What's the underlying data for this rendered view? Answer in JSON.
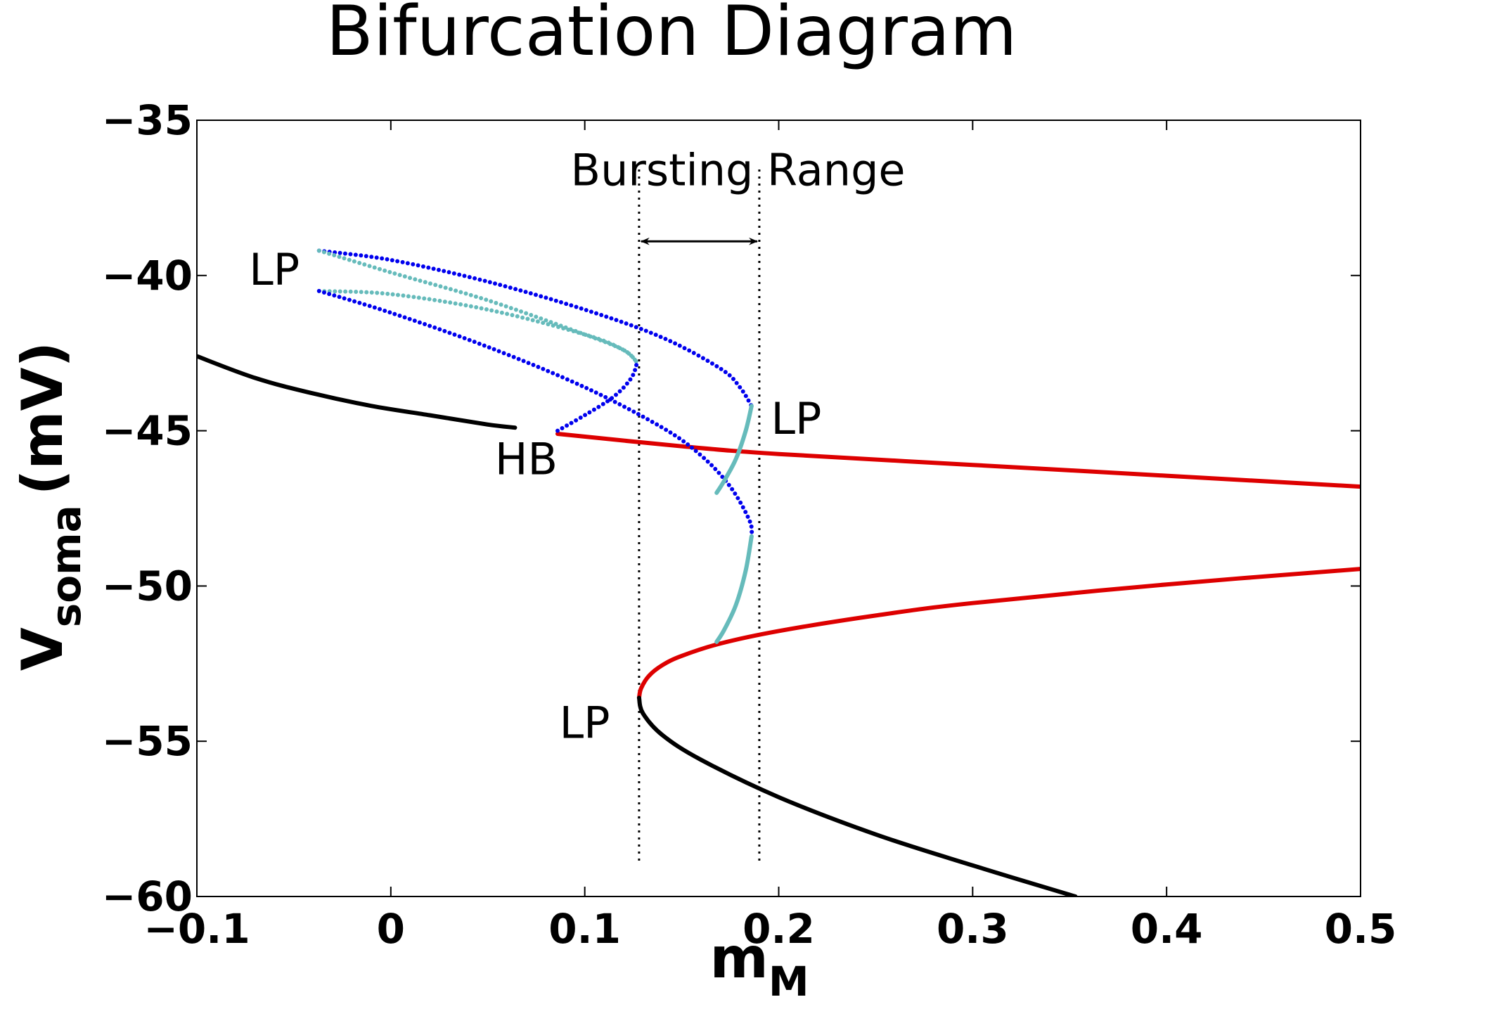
{
  "chart_data": {
    "type": "line",
    "title": "Bifurcation Diagram",
    "xlabel": {
      "main": "m",
      "sub": "M"
    },
    "ylabel": {
      "main": "V",
      "sub": "soma",
      "unit": "(mV)"
    },
    "xlim": [
      -0.1,
      0.5
    ],
    "ylim": [
      -60,
      -35
    ],
    "grid": false,
    "xticks": [
      -0.1,
      0,
      0.1,
      0.2,
      0.3,
      0.4,
      0.5
    ],
    "xtick_labels": [
      "−0.1",
      "0",
      "0.1",
      "0.2",
      "0.3",
      "0.4",
      "0.5"
    ],
    "yticks": [
      -35,
      -40,
      -45,
      -50,
      -55,
      -60
    ],
    "ytick_labels": [
      "−35",
      "−40",
      "−45",
      "−50",
      "−55",
      "−60"
    ],
    "colors": {
      "stable_equilibria": "#000000",
      "unstable_equilibria": "#dd0000",
      "stable_periodic": "#0000ee",
      "unstable_periodic": "#66bbbb",
      "text": "#000000"
    },
    "series": [
      {
        "key": "eq_stable_upper",
        "color": "#000000",
        "style": "solid",
        "x": [
          -0.1,
          -0.07,
          -0.04,
          -0.01,
          0.02,
          0.05,
          0.064
        ],
        "y": [
          -42.6,
          -43.3,
          -43.8,
          -44.2,
          -44.5,
          -44.8,
          -44.9
        ]
      },
      {
        "key": "eq_unstable_upper",
        "color": "#dd0000",
        "style": "solid",
        "x": [
          0.086,
          0.15,
          0.2,
          0.3,
          0.4,
          0.5
        ],
        "y": [
          -45.1,
          -45.5,
          -45.75,
          -46.1,
          -46.45,
          -46.8
        ]
      },
      {
        "key": "eq_unstable_lower",
        "color": "#dd0000",
        "style": "solid",
        "x": [
          0.128,
          0.129,
          0.133,
          0.14,
          0.15,
          0.17,
          0.2,
          0.25,
          0.3,
          0.4,
          0.5
        ],
        "y": [
          -53.6,
          -53.3,
          -52.9,
          -52.55,
          -52.25,
          -51.85,
          -51.45,
          -50.95,
          -50.55,
          -49.95,
          -49.45
        ]
      },
      {
        "key": "eq_stable_lower",
        "color": "#000000",
        "style": "solid",
        "x": [
          0.128,
          0.13,
          0.14,
          0.16,
          0.2,
          0.25,
          0.3,
          0.353
        ],
        "y": [
          -53.6,
          -54.1,
          -54.8,
          -55.6,
          -56.8,
          -58.0,
          -59.0,
          -60.0
        ]
      },
      {
        "key": "po_stable_max_a",
        "color": "#0000ee",
        "style": "dotted",
        "x": [
          -0.037,
          0.0,
          0.05,
          0.1,
          0.14,
          0.17,
          0.18,
          0.186
        ],
        "y": [
          -39.2,
          -39.5,
          -40.2,
          -41.1,
          -42.0,
          -43.0,
          -43.6,
          -44.2
        ]
      },
      {
        "key": "po_unstable_max",
        "color": "#66bbbb",
        "style": "dotted",
        "x": [
          -0.037,
          0.0,
          0.05,
          0.1,
          0.12,
          0.127
        ],
        "y": [
          -39.2,
          -39.9,
          -40.8,
          -41.9,
          -42.4,
          -42.8
        ]
      },
      {
        "key": "po_unstable_min",
        "color": "#66bbbb",
        "style": "dotted",
        "x": [
          -0.037,
          0.0,
          0.05,
          0.1,
          0.12,
          0.127
        ],
        "y": [
          -40.5,
          -40.6,
          -41.1,
          -41.9,
          -42.4,
          -42.8
        ]
      },
      {
        "key": "po_stable_hb_branch",
        "color": "#0000ee",
        "style": "dotted",
        "x": [
          0.086,
          0.1,
          0.115,
          0.124,
          0.127
        ],
        "y": [
          -45.0,
          -44.5,
          -43.9,
          -43.3,
          -42.8
        ]
      },
      {
        "key": "po_stable_min",
        "color": "#0000ee",
        "style": "dotted",
        "x": [
          -0.037,
          0.0,
          0.05,
          0.1,
          0.14,
          0.16,
          0.175,
          0.185,
          0.186
        ],
        "y": [
          -40.5,
          -41.2,
          -42.3,
          -43.6,
          -44.9,
          -45.8,
          -46.8,
          -47.9,
          -48.4
        ]
      },
      {
        "key": "po_unstable_upper_tail",
        "color": "#66bbbb",
        "style": "solid",
        "x": [
          0.186,
          0.183,
          0.178,
          0.172,
          0.168
        ],
        "y": [
          -44.2,
          -45.0,
          -45.9,
          -46.6,
          -47.0
        ]
      },
      {
        "key": "po_unstable_lower_tail",
        "color": "#66bbbb",
        "style": "solid",
        "x": [
          0.186,
          0.183,
          0.178,
          0.172,
          0.168
        ],
        "y": [
          -48.4,
          -49.5,
          -50.6,
          -51.4,
          -51.8
        ]
      }
    ],
    "vlines": [
      {
        "x": 0.128,
        "style": "dotted"
      },
      {
        "x": 0.19,
        "style": "dotted"
      }
    ],
    "annotations": [
      {
        "text": "LP",
        "x": -0.047,
        "y": -39.8,
        "anchor": "end"
      },
      {
        "text": "LP",
        "x": 0.196,
        "y": -44.6,
        "anchor": "start"
      },
      {
        "text": "HB",
        "x": 0.086,
        "y": -45.9,
        "anchor": "end"
      },
      {
        "text": "LP",
        "x": 0.113,
        "y": -54.4,
        "anchor": "end"
      },
      {
        "text": "Bursting Range",
        "x": 0.179,
        "y": -36.6,
        "anchor": "middle"
      }
    ],
    "range_arrow": {
      "x1": 0.128,
      "x2": 0.19,
      "y": -38.9
    }
  }
}
